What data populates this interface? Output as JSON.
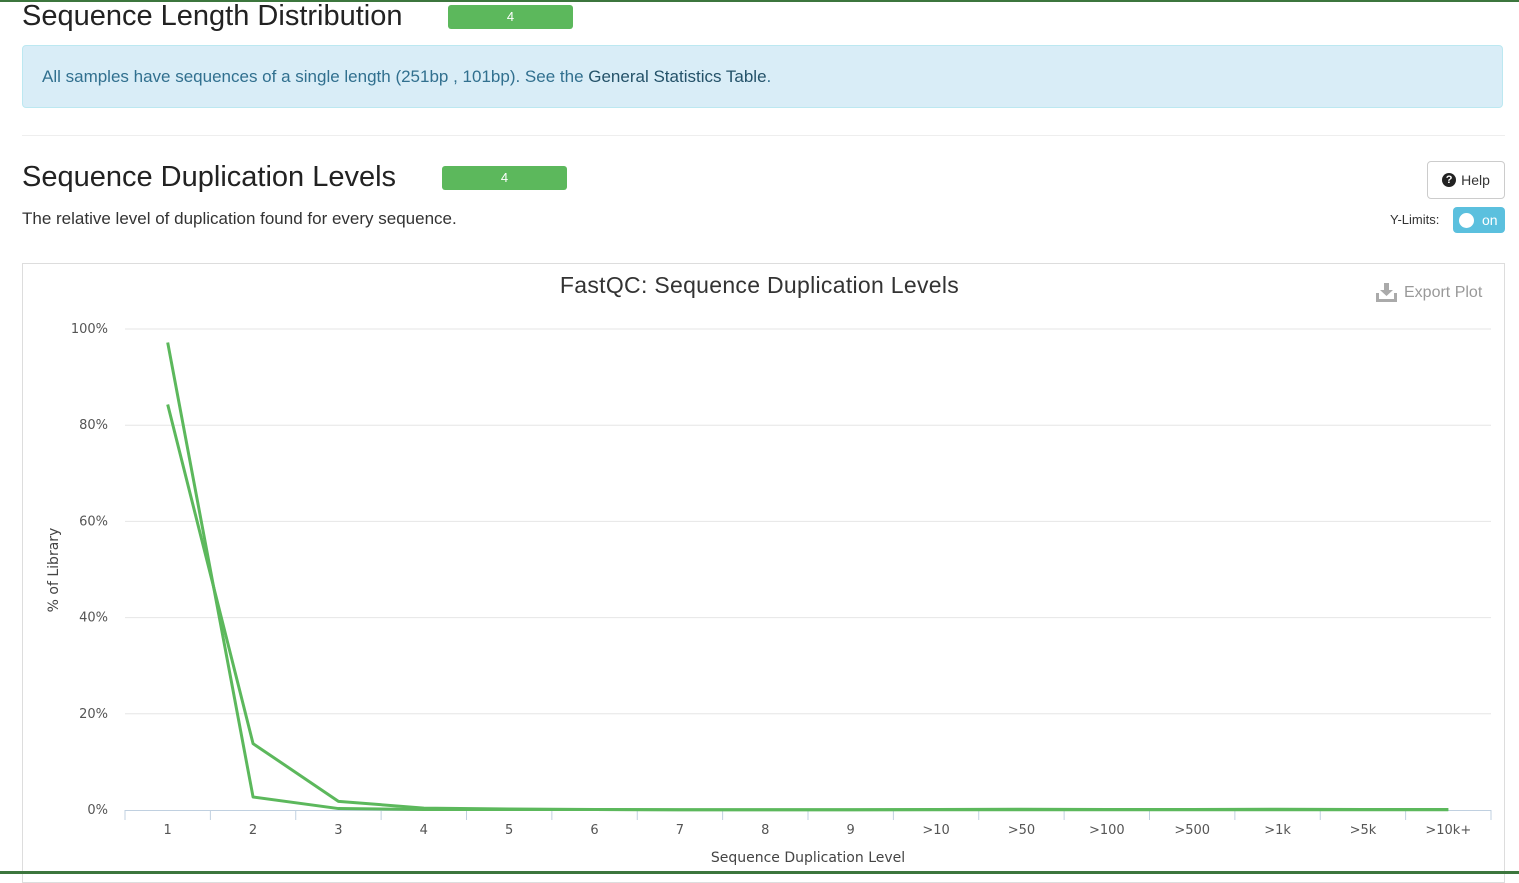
{
  "length_section": {
    "title": "Sequence Length Distribution",
    "status_count": "4",
    "alert_prefix": "All samples have sequences of a single length (251bp , 101bp). See the ",
    "alert_link": "General Statistics Table",
    "alert_suffix": "."
  },
  "dup_section": {
    "title": "Sequence Duplication Levels",
    "status_count": "4",
    "description": "The relative level of duplication found for every sequence.",
    "help_label": "Help",
    "ylimits_label": "Y-Limits:",
    "toggle_label": "on"
  },
  "plot": {
    "export_label": "Export Plot"
  },
  "colors": {
    "status_green": "#5cb85c",
    "series_green": "#5cb85c",
    "toggle_blue": "#5bc0de"
  },
  "chart_data": {
    "type": "line",
    "title": "FastQC: Sequence Duplication Levels",
    "xlabel": "Sequence Duplication Level",
    "ylabel": "% of Library",
    "categories": [
      "1",
      "2",
      "3",
      "4",
      "5",
      "6",
      "7",
      "8",
      "9",
      ">10",
      ">50",
      ">100",
      ">500",
      ">1k",
      ">5k",
      ">10k+"
    ],
    "y_ticks": [
      "0%",
      "20%",
      "40%",
      "60%",
      "80%",
      "100%"
    ],
    "ylim": [
      0,
      100
    ],
    "grid": true,
    "series": [
      {
        "values": [
          97.2,
          2.7,
          0.3,
          0.1,
          0.1,
          0.1,
          0.05,
          0.05,
          0.05,
          0.1,
          0.15,
          0.1,
          0.1,
          0.15,
          0.1,
          0.1
        ]
      },
      {
        "values": [
          84.3,
          13.8,
          1.8,
          0.4,
          0.2,
          0.1,
          0.05,
          0.05,
          0.05,
          0.05,
          0.05,
          0.05,
          0.05,
          0.05,
          0.05,
          0.05
        ]
      }
    ]
  }
}
